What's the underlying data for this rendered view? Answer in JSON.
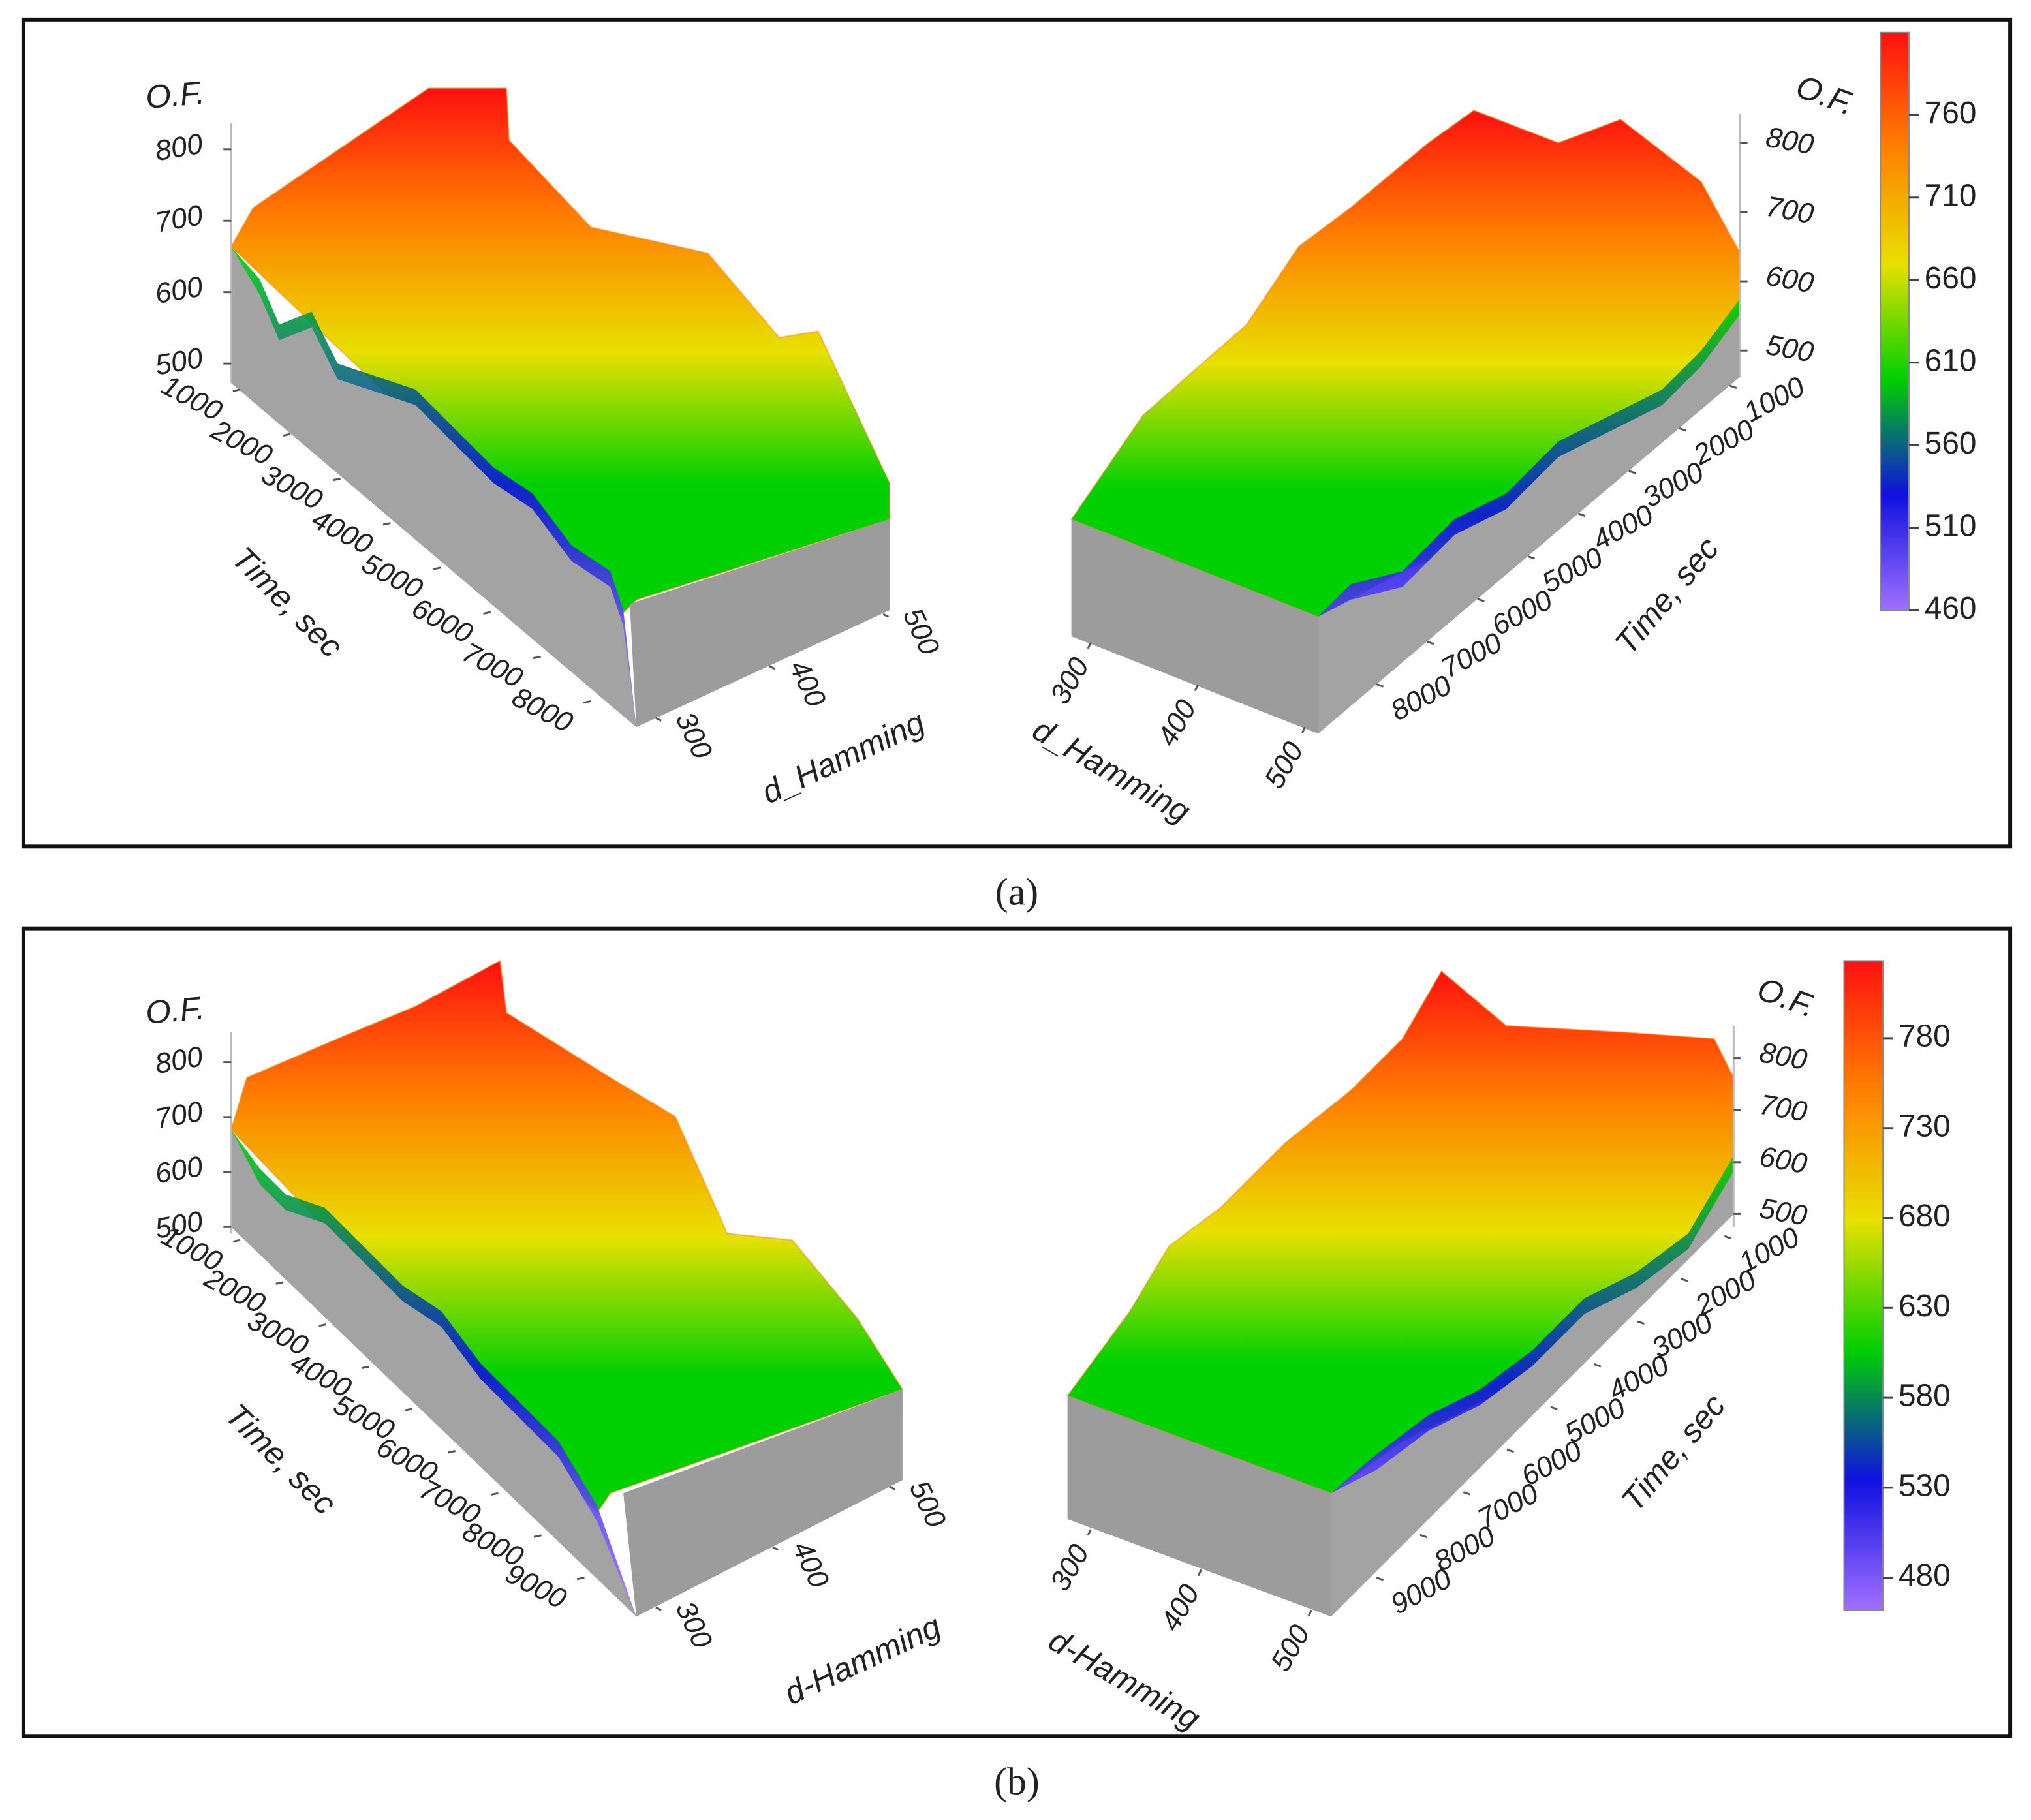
{
  "chart_data": [
    {
      "type": "surface3d",
      "caption": "(a)",
      "zlabel": "O.F.",
      "ylabel": "Time, sec",
      "xlabel": "d_Hamming",
      "zlim": [
        500,
        800
      ],
      "zticks": [
        500,
        600,
        700,
        800
      ],
      "ylim": [
        1000,
        8000
      ],
      "yticks": [
        1000,
        2000,
        3000,
        4000,
        5000,
        6000,
        7000,
        8000
      ],
      "xlim": [
        300,
        500
      ],
      "xticks": [
        300,
        400,
        500
      ],
      "colorbar": {
        "lim": [
          460,
          810
        ],
        "ticks": [
          460,
          510,
          560,
          610,
          660,
          710,
          760
        ]
      },
      "colormap": [
        "#a070ff",
        "#1010e0",
        "#00d000",
        "#e8e000",
        "#ff8000",
        "#ff1010"
      ]
    },
    {
      "type": "surface3d",
      "caption": "(b)",
      "zlabel": "O.F.",
      "ylabel": "Time, sec",
      "xlabel": "d-Hamming",
      "zlim": [
        500,
        800
      ],
      "zticks": [
        500,
        600,
        700,
        800
      ],
      "ylim": [
        1000,
        9000
      ],
      "yticks": [
        1000,
        2000,
        3000,
        4000,
        5000,
        6000,
        7000,
        8000,
        9000
      ],
      "xlim": [
        300,
        500
      ],
      "xticks": [
        300,
        400,
        500
      ],
      "colorbar": {
        "lim": [
          462,
          823
        ],
        "ticks": [
          480,
          530,
          580,
          630,
          680,
          730,
          780
        ]
      },
      "colormap": [
        "#a070ff",
        "#1010e0",
        "#00d000",
        "#e8e000",
        "#ff8000",
        "#ff1010"
      ]
    }
  ]
}
